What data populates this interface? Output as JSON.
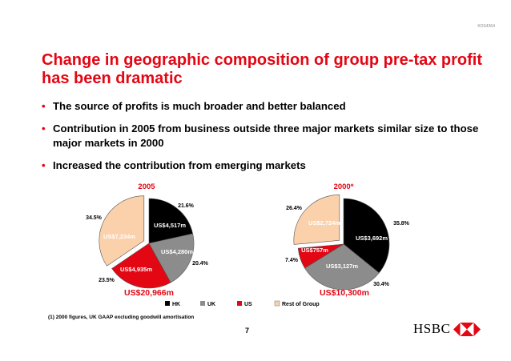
{
  "header": {
    "ref_code": "KOS4364"
  },
  "title": "Change in geographic composition of group pre-tax profit has been dramatic",
  "bullets": [
    "The source of profits is much broader and better balanced",
    "Contribution in 2005 from business outside three major markets similar size to those major markets in 2000",
    "Increased the contribution from emerging markets"
  ],
  "colors": {
    "HK": "#000000",
    "UK": "#8c8c8c",
    "US": "#e30613",
    "Rest of Group": "#fbd1ac",
    "title_red": "#e30613"
  },
  "chart_data": [
    {
      "type": "pie",
      "title": "2005",
      "total": "US$20,966m",
      "categories": [
        "HK",
        "UK",
        "US",
        "Rest of Group"
      ],
      "values": [
        4517,
        4280,
        4935,
        7234
      ],
      "percent_labels": [
        "21.6%",
        "20.4%",
        "23.5%",
        "34.5%"
      ],
      "value_labels": [
        "US$4,517m",
        "US$4,280m",
        "US$4,935m",
        "US$7,234m"
      ],
      "exploded": "Rest of Group"
    },
    {
      "type": "pie",
      "title": "2000*",
      "total": "US$10,300m",
      "categories": [
        "HK",
        "UK",
        "US",
        "Rest of Group"
      ],
      "values": [
        3692,
        3127,
        757,
        2724
      ],
      "percent_labels": [
        "35.8%",
        "30.4%",
        "7.4%",
        "26.4%"
      ],
      "value_labels": [
        "US$3,692m",
        "US$3,127m",
        "US$757m",
        "US$2,724m"
      ],
      "exploded": "Rest of Group"
    }
  ],
  "legend": [
    "HK",
    "UK",
    "US",
    "Rest of Group"
  ],
  "footnote": "(1) 2000 figures, UK GAAP excluding goodwill amortisation",
  "page_number": "7",
  "logo": {
    "text": "HSBC",
    "icon": "hsbc-hexagon-icon"
  }
}
